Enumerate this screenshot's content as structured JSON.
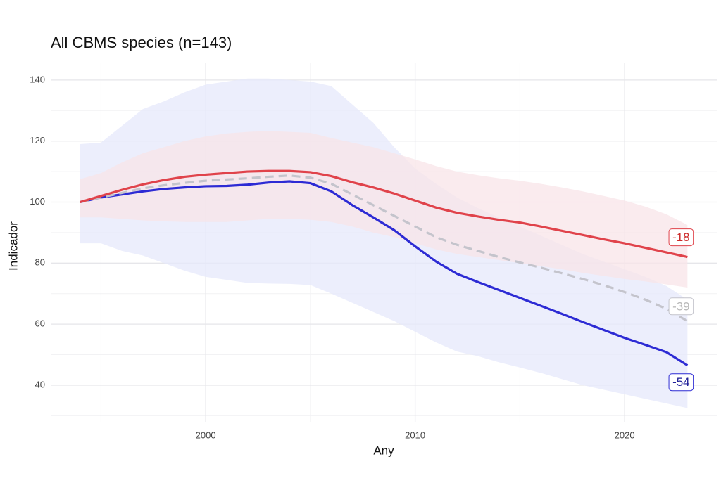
{
  "chart_data": {
    "type": "line",
    "title": "All CBMS species (n=143)",
    "xlabel": "Any",
    "ylabel": "Indicador",
    "x": [
      1994,
      1995,
      1996,
      1997,
      1998,
      1999,
      2000,
      2001,
      2002,
      2003,
      2004,
      2005,
      2006,
      2007,
      2008,
      2009,
      2010,
      2011,
      2012,
      2013,
      2014,
      2015,
      2016,
      2017,
      2018,
      2019,
      2020,
      2021,
      2022,
      2023
    ],
    "series": [
      {
        "color": "#2d2bd4",
        "ribbon_color": "#e6e8fb",
        "dashed": false,
        "end_label": "-54",
        "label_text_color": "#22229a",
        "values": [
          100,
          101.5,
          102.5,
          103.5,
          104.3,
          104.8,
          105.2,
          105.3,
          105.7,
          106.4,
          106.8,
          106.2,
          103.5,
          99,
          95,
          90.8,
          85.5,
          80.5,
          76.5,
          73.8,
          71.2,
          68.6,
          66,
          63.4,
          60.7,
          58.1,
          55.5,
          53.2,
          50.8,
          46.5
        ],
        "upper": [
          119,
          119.5,
          125,
          130.5,
          133,
          136,
          138.5,
          139.5,
          140.5,
          140.5,
          140,
          139.5,
          138,
          132,
          126,
          118,
          111,
          106,
          101.5,
          98,
          95,
          92,
          89,
          86,
          83,
          80.5,
          78,
          75.5,
          72.5,
          68
        ],
        "lower": [
          86.5,
          86.5,
          84,
          82.5,
          80,
          77.5,
          75.5,
          74.5,
          73.5,
          73.3,
          73.2,
          72.8,
          70,
          67,
          64,
          61,
          57.5,
          54,
          51,
          49.5,
          47.5,
          45.8,
          44,
          42,
          40,
          38.5,
          37,
          35.5,
          34,
          32.5
        ]
      },
      {
        "color": "#c4c4cc",
        "dashed": true,
        "end_label": "-39",
        "label_text_color": "#b8b8b8",
        "values": [
          100,
          101.5,
          103,
          104.5,
          105.5,
          106.3,
          107,
          107.4,
          107.8,
          108.3,
          108.7,
          108,
          106,
          102.5,
          99,
          95.5,
          92,
          88.5,
          86,
          84,
          82,
          80.2,
          78.5,
          76.7,
          74.8,
          72.8,
          70.5,
          68,
          65,
          61
        ]
      },
      {
        "color": "#e0434b",
        "ribbon_color": "#f8e4e8",
        "dashed": false,
        "end_label": "-18",
        "label_text_color": "#cc2a2a",
        "values": [
          100,
          102,
          104,
          105.8,
          107.2,
          108.3,
          109,
          109.5,
          110,
          110.2,
          110.2,
          109.8,
          108.5,
          106.5,
          104.8,
          102.8,
          100.5,
          98.2,
          96.5,
          95.3,
          94.2,
          93.3,
          92,
          90.6,
          89.2,
          87.8,
          86.5,
          85,
          83.5,
          82
        ],
        "upper": [
          107.5,
          109.5,
          113,
          116,
          118,
          120,
          121.5,
          122.5,
          123,
          123.3,
          123,
          122.7,
          121,
          119.5,
          118,
          116,
          114,
          111.8,
          110,
          108.8,
          107.8,
          107,
          106,
          104.8,
          103.5,
          102,
          100.5,
          98.5,
          96,
          92.5
        ],
        "lower": [
          95,
          95,
          94.5,
          94,
          93.7,
          93.5,
          93.5,
          93.5,
          94,
          94.5,
          94.5,
          94.2,
          93.5,
          92,
          90,
          88.5,
          86.5,
          84.5,
          83,
          82,
          81,
          80,
          79,
          78,
          76.8,
          75.8,
          74.8,
          74,
          73,
          72
        ]
      }
    ],
    "xlim": [
      1992.6,
      2024.4
    ],
    "ylim": [
      28,
      145.5
    ],
    "xticks": [
      2000,
      2010,
      2020
    ],
    "yticks": [
      40,
      60,
      80,
      100,
      120,
      140
    ],
    "grid": true
  }
}
